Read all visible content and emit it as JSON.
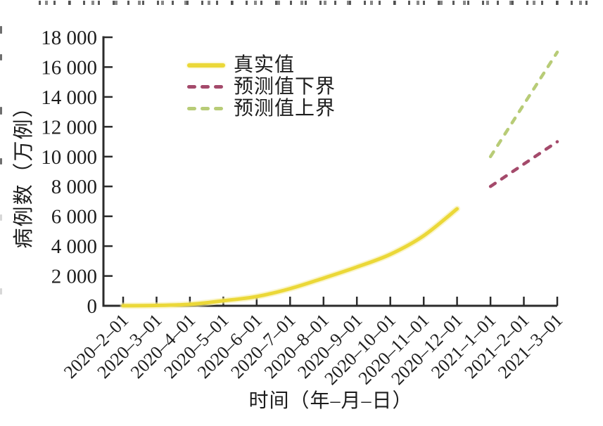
{
  "artifacts": {
    "top_cropped_text_line": "bottom fragments of a cropped caption line (illegible)",
    "left_edge_marks": "small cropped glyph fragments along the left edge"
  },
  "chart_data": {
    "type": "line",
    "title": "",
    "xlabel": "时间（年–月–日）",
    "ylabel": "病例数（万例）",
    "x_tick_labels": [
      "2020–2–01",
      "2020–3–01",
      "2020–4–01",
      "2020–5–01",
      "2020–6–01",
      "2020–7–01",
      "2020–8–01",
      "2020–9–01",
      "2020–10–01",
      "2020–11–01",
      "2020–12–01",
      "2021–1–01",
      "2021–2–01",
      "2021–3–01"
    ],
    "y_ticks": [
      0,
      2000,
      4000,
      6000,
      8000,
      10000,
      12000,
      14000,
      16000,
      18000
    ],
    "y_tick_labels": [
      "0",
      "2 000",
      "4 000",
      "6 000",
      "8 000",
      "10 000",
      "12 000",
      "14 000",
      "16 000",
      "18 000"
    ],
    "ylim": [
      0,
      18000
    ],
    "grid": false,
    "legend_position": "upper-left-inside",
    "series": [
      {
        "id": "actual",
        "name": "真实值",
        "line_style": "solid",
        "color": "#EBD838",
        "glow_color": "#F6EDA0",
        "start_index": 0,
        "x": [
          "2020–2–01",
          "2020–3–01",
          "2020–4–01",
          "2020–5–01",
          "2020–6–01",
          "2020–7–01",
          "2020–8–01",
          "2020–9–01",
          "2020–10–01",
          "2020–11–01",
          "2020–12–01"
        ],
        "values": [
          5,
          25,
          100,
          340,
          620,
          1150,
          1850,
          2600,
          3450,
          4700,
          6500
        ]
      },
      {
        "id": "lower-bound",
        "name": "预测值下界",
        "line_style": "dashed",
        "color": "#A44A6B",
        "start_index": 11,
        "x": [
          "2021–1–01",
          "2021–2–01",
          "2021–3–01"
        ],
        "values": [
          8000,
          9500,
          11000
        ]
      },
      {
        "id": "upper-bound",
        "name": "预测值上界",
        "line_style": "dashed",
        "color": "#B8CC77",
        "start_index": 11,
        "x": [
          "2021–1–01",
          "2021–2–01",
          "2021–3–01"
        ],
        "values": [
          10000,
          13500,
          17000
        ]
      }
    ]
  }
}
